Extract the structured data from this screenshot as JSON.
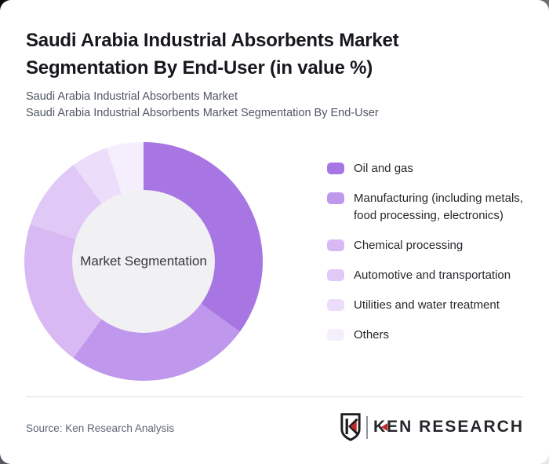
{
  "header": {
    "title": "Saudi Arabia Industrial Absorbents Market Segmentation By End-User (in value %)",
    "subtitle_line1": "Saudi Arabia Industrial Absorbents Market",
    "subtitle_line2": "Saudi Arabia Industrial Absorbents Market Segmentation By End-User"
  },
  "chart_data": {
    "type": "pie",
    "subtype": "donut",
    "title": "Saudi Arabia Industrial Absorbents Market Segmentation By End-User (in value %)",
    "center_label": "Market Segmentation",
    "categories": [
      "Oil and gas",
      "Manufacturing (including metals, food processing, electronics)",
      "Chemical processing",
      "Automotive and transportation",
      "Utilities and water treatment",
      "Others"
    ],
    "values": [
      35,
      25,
      20,
      10,
      5,
      5
    ],
    "unit": "value %",
    "colors": [
      "#a876e3",
      "#bf97ec",
      "#d9b9f3",
      "#e0c9f6",
      "#ecdefa",
      "#f5eefc"
    ],
    "hole_color": "#f1f0f2",
    "start_angle_deg": 0,
    "direction": "clockwise",
    "legend_position": "right",
    "data_labels_shown": false
  },
  "footer": {
    "source": "Source: Ken Research Analysis",
    "brand": {
      "name": "KEN RESEARCH",
      "accent_color": "#c0272d"
    }
  }
}
